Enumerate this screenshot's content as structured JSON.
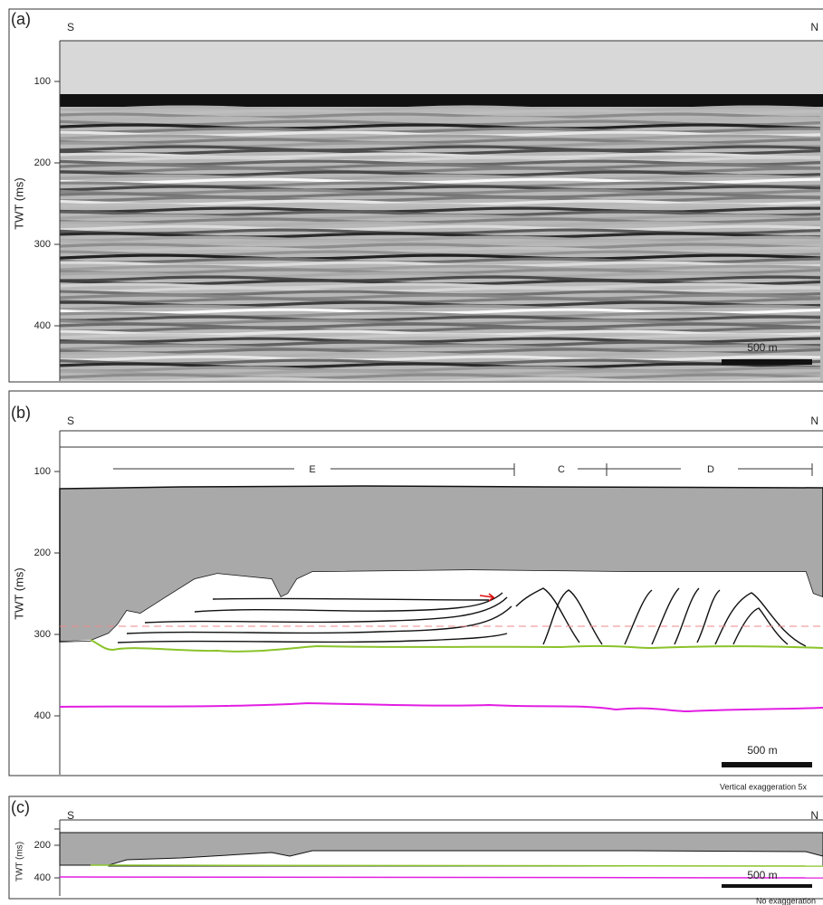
{
  "panels": [
    {
      "label": "(a)",
      "left": "S",
      "right": "N",
      "axis_label": "TWT (ms)",
      "ticks": [
        100,
        200,
        300,
        400
      ],
      "scale_bar": "500 m"
    },
    {
      "label": "(b)",
      "left": "S",
      "right": "N",
      "axis_label": "TWT (ms)",
      "ticks": [
        100,
        200,
        300,
        400
      ],
      "scale_bar": "500 m",
      "units": [
        "E",
        "C",
        "D"
      ],
      "note": "Vertical exaggeration 5x"
    },
    {
      "label": "(c)",
      "left": "S",
      "right": "N",
      "axis_label": "TWT (ms)",
      "ticks": [
        200,
        400
      ],
      "scale_bar": "500 m",
      "note": "No exaggeration"
    }
  ]
}
